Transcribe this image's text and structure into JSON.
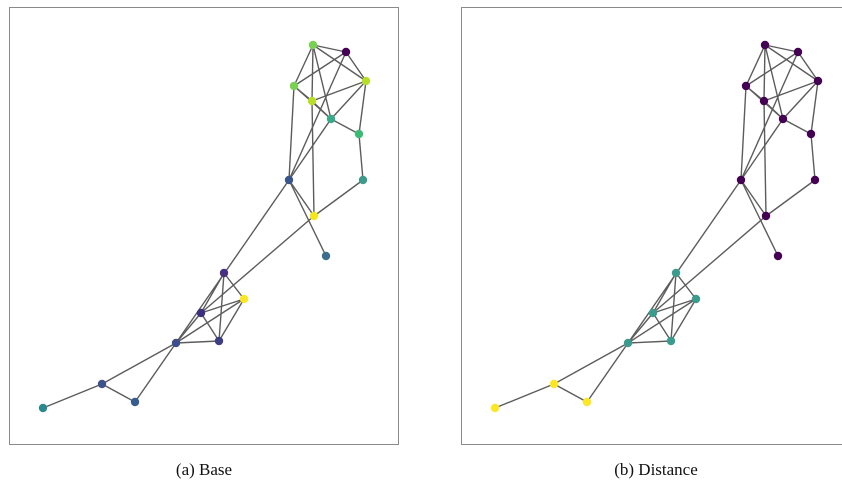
{
  "panels": [
    {
      "caption": "(a) Base",
      "node_colors": {
        "n0": "#79d151",
        "n1": "#440154",
        "n2": "#7ad151",
        "n3": "#b5de2b",
        "n4": "#b8de29",
        "n5": "#38aa8a",
        "n6": "#3cbb75",
        "n7": "#3e9b89",
        "n8": "#3a548c",
        "n9": "#f4e61e",
        "n10": "#3e6e8e",
        "n11": "#46327e",
        "n12": "#fde725",
        "n13": "#3b2f80",
        "n14": "#3d4e8a",
        "n15": "#3f3d83",
        "n16": "#3e5389",
        "n17": "#365d8d",
        "n18": "#2b898d"
      }
    },
    {
      "caption": "(b) Distance",
      "node_colors": {
        "n0": "#440154",
        "n1": "#440154",
        "n2": "#440154",
        "n3": "#440154",
        "n4": "#440154",
        "n5": "#440154",
        "n6": "#440154",
        "n7": "#440154",
        "n8": "#440154",
        "n9": "#440154",
        "n10": "#440154",
        "n11": "#3b9b8c",
        "n12": "#3b9b8c",
        "n13": "#3b9b8c",
        "n14": "#3b9b8c",
        "n15": "#3b9b8c",
        "n16": "#fde725",
        "n17": "#fde725",
        "n18": "#fde725"
      }
    }
  ]
}
